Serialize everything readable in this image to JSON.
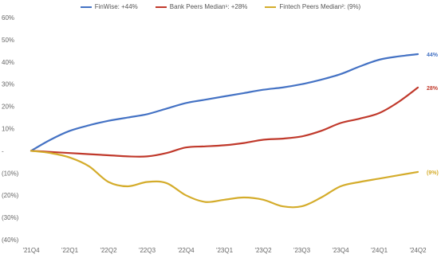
{
  "chart_data": {
    "type": "line",
    "title": "",
    "xlabel": "",
    "ylabel": "",
    "categories": [
      "'21Q4",
      "'22Q1",
      "'22Q2",
      "'22Q3",
      "'22Q4",
      "'23Q1",
      "'23Q2",
      "'23Q3",
      "'23Q4",
      "'24Q1",
      "'24Q2"
    ],
    "ylim": [
      -40,
      60
    ],
    "yticks": [
      60,
      50,
      40,
      30,
      20,
      10,
      0,
      -10,
      -20,
      -30,
      -40
    ],
    "ytick_labels": [
      "60%",
      "50%",
      "40%",
      "30%",
      "20%",
      "10%",
      "-",
      "(10%)",
      "(20%)",
      "(30%)",
      "(40%)"
    ],
    "grid": false,
    "legend_position": "top-center",
    "series": [
      {
        "name": "FinWise: +44%",
        "color": "#4472c4",
        "end_label": "44%",
        "x": [
          0,
          0.5,
          1,
          1.5,
          2,
          2.5,
          3,
          3.5,
          4,
          4.5,
          5,
          5.5,
          6,
          6.5,
          7,
          7.5,
          8,
          8.5,
          9,
          9.5,
          10
        ],
        "values": [
          0,
          5,
          9,
          11.5,
          13.5,
          15,
          16.5,
          19,
          21.5,
          23,
          24.5,
          26,
          27.5,
          28.5,
          30,
          32,
          34.5,
          38,
          41,
          42.5,
          43.5
        ]
      },
      {
        "name": "Bank Peers Median¹: +28%",
        "color": "#c0392b",
        "end_label": "28%",
        "x": [
          0,
          0.5,
          1,
          1.5,
          2,
          2.5,
          3,
          3.5,
          4,
          4.5,
          5,
          5.5,
          6,
          6.5,
          7,
          7.5,
          8,
          8.5,
          9,
          9.5,
          10
        ],
        "values": [
          0,
          -0.5,
          -1,
          -1.5,
          -2,
          -2.5,
          -2.5,
          -1,
          1.5,
          2,
          2.5,
          3.5,
          5,
          5.5,
          6.5,
          9,
          12.5,
          14.5,
          17,
          22,
          28.5
        ]
      },
      {
        "name": "Fintech Peers Median²: (9%)",
        "color": "#d4ac2b",
        "end_label": "(9%)",
        "x": [
          0,
          0.5,
          1,
          1.5,
          2,
          2.5,
          3,
          3.5,
          4,
          4.5,
          5,
          5.5,
          6,
          6.5,
          7,
          7.5,
          8,
          8.5,
          9,
          9.5,
          10
        ],
        "values": [
          0,
          -1,
          -3,
          -7,
          -14,
          -16,
          -14,
          -14.5,
          -20,
          -23,
          -22,
          -21,
          -22,
          -25,
          -25,
          -21,
          -16,
          -14,
          -12.5,
          -11,
          -9.5
        ]
      }
    ]
  }
}
